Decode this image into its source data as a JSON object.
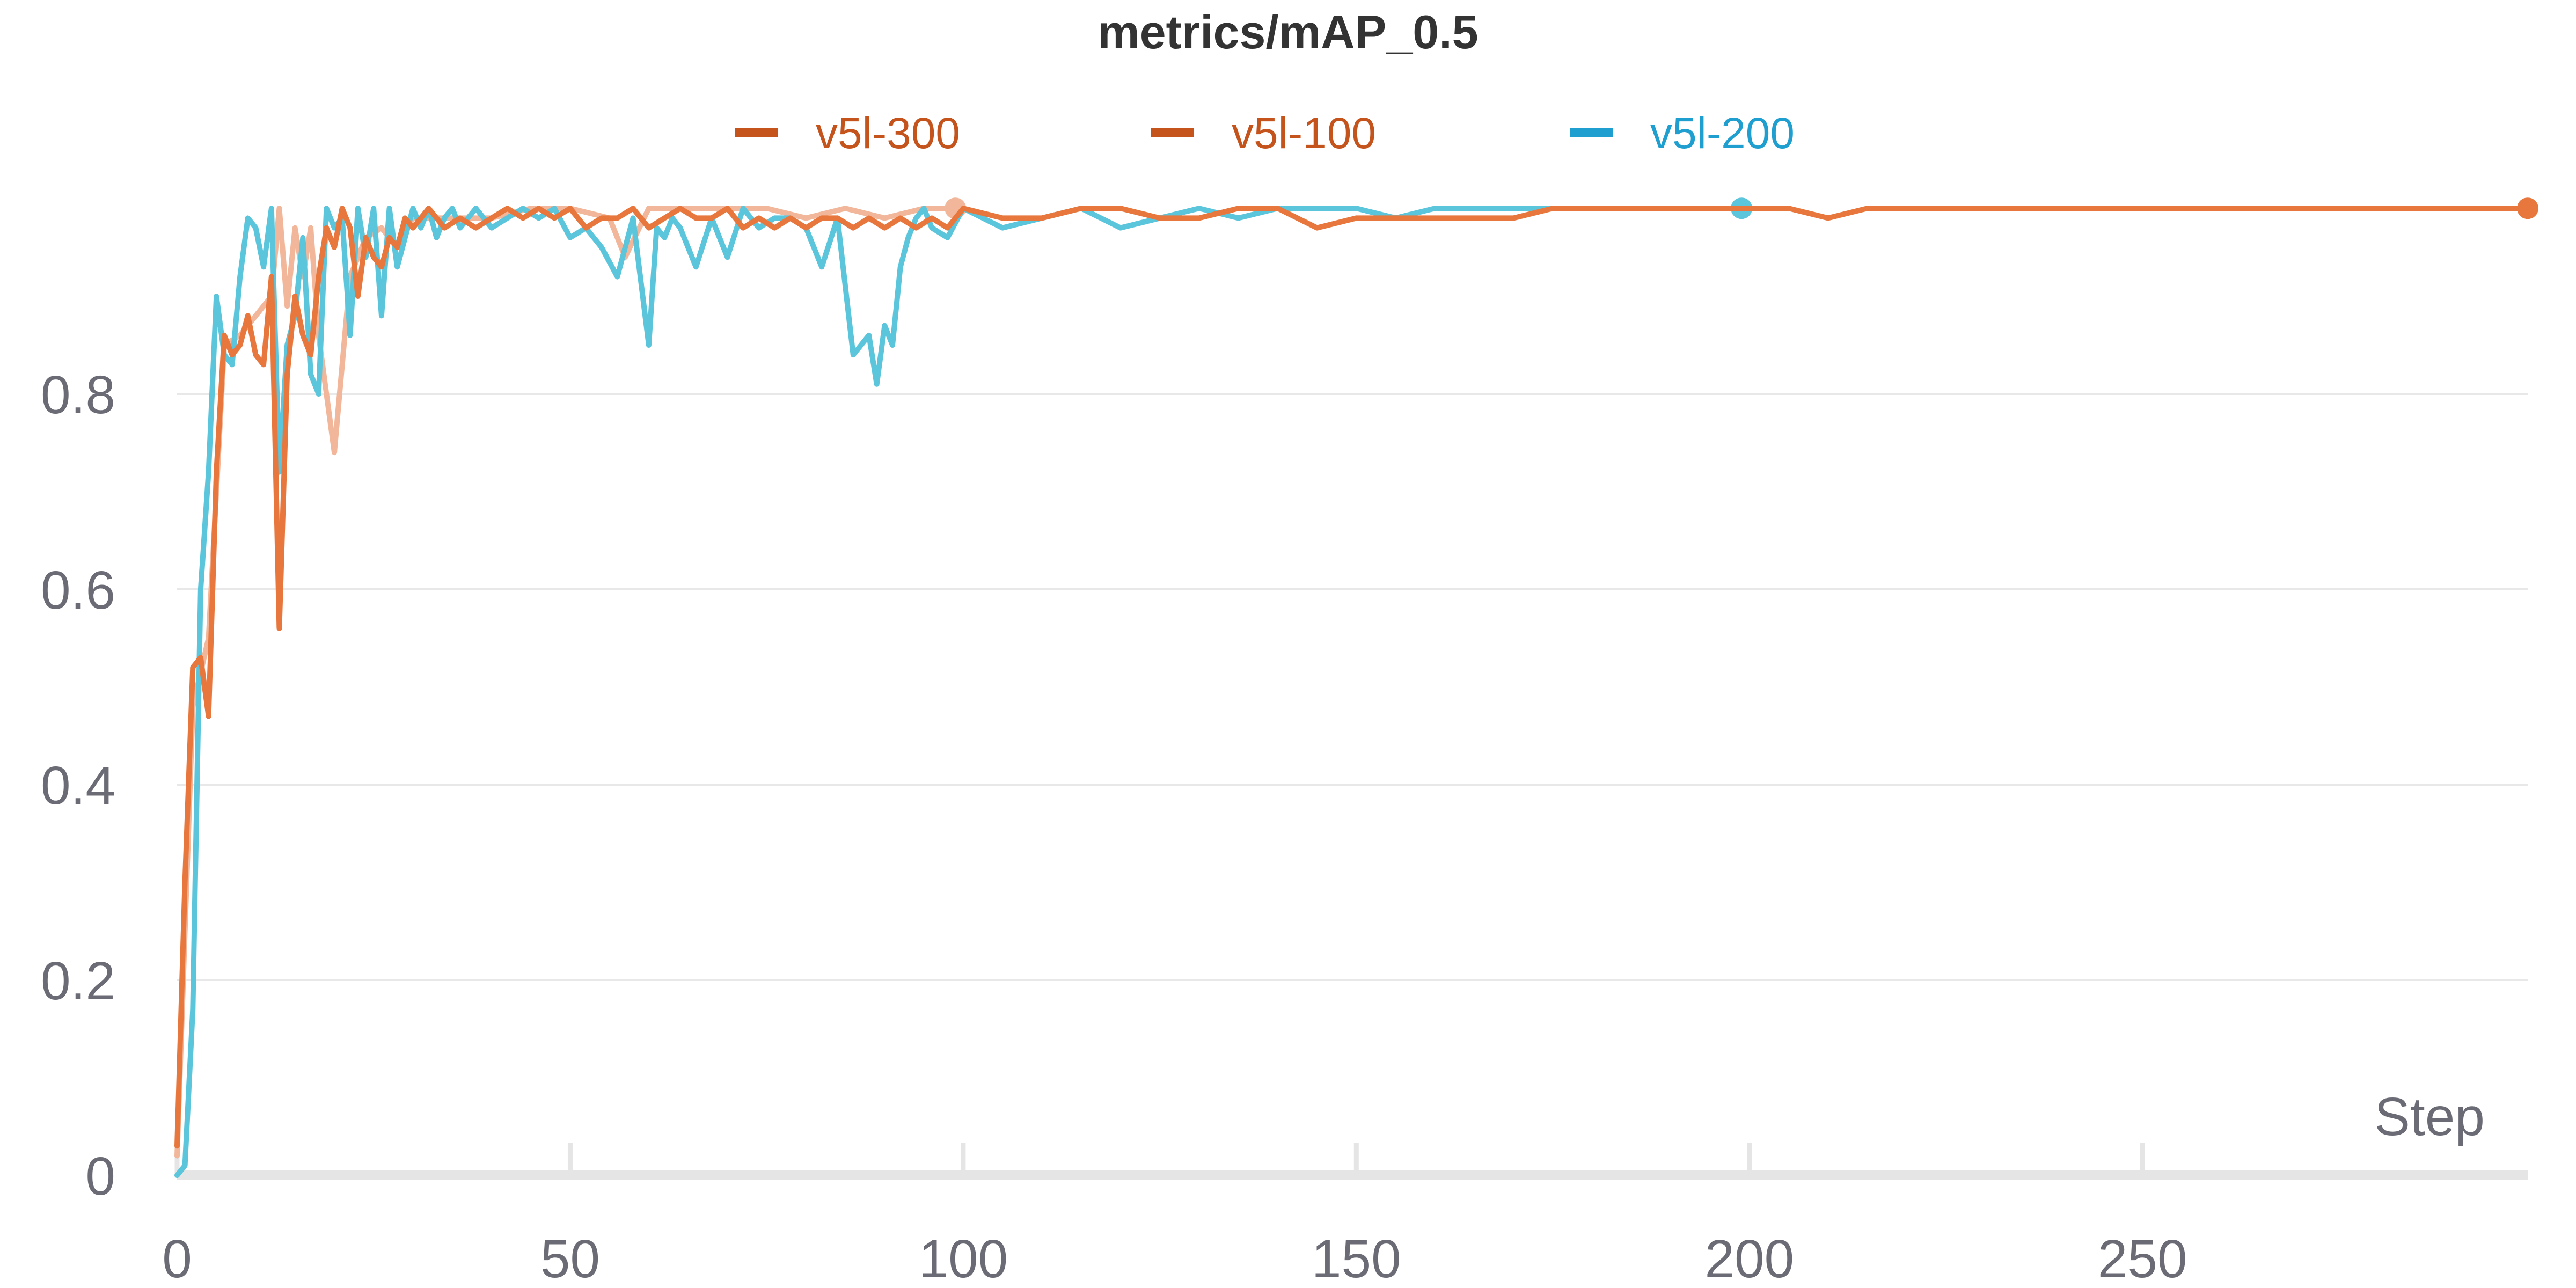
{
  "chart_data": {
    "type": "line",
    "title": "metrics/mAP_0.5",
    "xlabel": "Step",
    "ylabel": "",
    "xlim": [
      0,
      299
    ],
    "ylim": [
      0,
      1.0
    ],
    "x_ticks": [
      "0",
      "50",
      "100",
      "150",
      "200",
      "250"
    ],
    "y_ticks": [
      "0",
      "0.2",
      "0.4",
      "0.6",
      "0.8"
    ],
    "grid": true,
    "legend_position": "top-center",
    "series": [
      {
        "name": "v5l-300",
        "color": "#e8773d",
        "legend_color": "#c4531c",
        "x": [
          0,
          1,
          2,
          3,
          4,
          5,
          6,
          7,
          8,
          9,
          10,
          11,
          12,
          13,
          14,
          15,
          16,
          17,
          18,
          19,
          20,
          21,
          22,
          23,
          24,
          25,
          26,
          27,
          28,
          29,
          30,
          32,
          34,
          36,
          38,
          40,
          42,
          44,
          46,
          48,
          50,
          52,
          54,
          56,
          58,
          60,
          62,
          64,
          66,
          68,
          70,
          72,
          74,
          76,
          78,
          80,
          82,
          84,
          86,
          88,
          90,
          92,
          94,
          96,
          98,
          100,
          105,
          110,
          115,
          120,
          125,
          130,
          135,
          140,
          145,
          150,
          155,
          160,
          165,
          170,
          175,
          180,
          185,
          190,
          195,
          200,
          205,
          210,
          215,
          220,
          225,
          230,
          235,
          240,
          245,
          250,
          255,
          260,
          265,
          270,
          275,
          280,
          285,
          290,
          295,
          299
        ],
        "values": [
          0.03,
          0.3,
          0.52,
          0.53,
          0.47,
          0.72,
          0.86,
          0.84,
          0.85,
          0.88,
          0.84,
          0.83,
          0.92,
          0.56,
          0.82,
          0.9,
          0.86,
          0.84,
          0.92,
          0.97,
          0.95,
          0.99,
          0.97,
          0.9,
          0.96,
          0.94,
          0.93,
          0.96,
          0.95,
          0.98,
          0.97,
          0.99,
          0.97,
          0.98,
          0.97,
          0.98,
          0.99,
          0.98,
          0.99,
          0.98,
          0.99,
          0.97,
          0.98,
          0.98,
          0.99,
          0.97,
          0.98,
          0.99,
          0.98,
          0.98,
          0.99,
          0.97,
          0.98,
          0.97,
          0.98,
          0.97,
          0.98,
          0.98,
          0.97,
          0.98,
          0.97,
          0.98,
          0.97,
          0.98,
          0.97,
          0.99,
          0.98,
          0.98,
          0.99,
          0.99,
          0.98,
          0.98,
          0.99,
          0.99,
          0.97,
          0.98,
          0.98,
          0.98,
          0.98,
          0.98,
          0.99,
          0.99,
          0.99,
          0.99,
          0.99,
          0.99,
          0.99,
          0.98,
          0.99,
          0.99,
          0.99,
          0.99,
          0.99,
          0.99,
          0.99,
          0.99,
          0.99,
          0.99,
          0.99,
          0.99,
          0.99,
          0.99,
          0.99,
          0.99,
          0.99,
          0.99
        ]
      },
      {
        "name": "v5l-100",
        "color": "#f2b79a",
        "legend_color": "#c4531c",
        "x": [
          0,
          2,
          4,
          6,
          8,
          10,
          12,
          13,
          14,
          15,
          16,
          17,
          18,
          19,
          20,
          22,
          24,
          26,
          28,
          30,
          35,
          40,
          45,
          50,
          55,
          57,
          60,
          65,
          70,
          75,
          80,
          85,
          90,
          95,
          99
        ],
        "values": [
          0.02,
          0.48,
          0.55,
          0.85,
          0.86,
          0.88,
          0.9,
          0.99,
          0.89,
          0.97,
          0.92,
          0.97,
          0.86,
          0.8,
          0.74,
          0.92,
          0.96,
          0.97,
          0.95,
          0.98,
          0.98,
          0.98,
          0.99,
          0.99,
          0.98,
          0.94,
          0.99,
          0.99,
          0.99,
          0.99,
          0.98,
          0.99,
          0.98,
          0.99,
          0.99
        ]
      },
      {
        "name": "v5l-200",
        "color": "#5bc5db",
        "legend_color": "#1e9fcf",
        "x": [
          0,
          1,
          2,
          3,
          4,
          5,
          6,
          7,
          8,
          9,
          10,
          11,
          12,
          13,
          14,
          15,
          16,
          17,
          18,
          19,
          20,
          21,
          22,
          23,
          24,
          25,
          26,
          27,
          28,
          29,
          30,
          31,
          32,
          33,
          34,
          35,
          36,
          38,
          40,
          42,
          44,
          46,
          48,
          50,
          52,
          54,
          56,
          58,
          60,
          61,
          62,
          63,
          64,
          66,
          68,
          70,
          72,
          74,
          76,
          78,
          80,
          82,
          84,
          86,
          88,
          89,
          90,
          91,
          92,
          93,
          94,
          95,
          96,
          98,
          100,
          105,
          110,
          115,
          120,
          125,
          130,
          135,
          140,
          145,
          150,
          155,
          160,
          165,
          170,
          175,
          180,
          185,
          190,
          195,
          199
        ],
        "values": [
          0.0,
          0.01,
          0.17,
          0.6,
          0.72,
          0.9,
          0.84,
          0.83,
          0.92,
          0.98,
          0.97,
          0.93,
          0.99,
          0.72,
          0.85,
          0.88,
          0.96,
          0.82,
          0.8,
          0.99,
          0.97,
          0.98,
          0.86,
          0.99,
          0.94,
          0.99,
          0.88,
          0.99,
          0.93,
          0.96,
          0.99,
          0.97,
          0.99,
          0.96,
          0.98,
          0.99,
          0.97,
          0.99,
          0.97,
          0.98,
          0.99,
          0.98,
          0.99,
          0.96,
          0.97,
          0.95,
          0.92,
          0.98,
          0.85,
          0.97,
          0.96,
          0.98,
          0.97,
          0.93,
          0.98,
          0.94,
          0.99,
          0.97,
          0.98,
          0.98,
          0.97,
          0.93,
          0.98,
          0.84,
          0.86,
          0.81,
          0.87,
          0.85,
          0.93,
          0.96,
          0.98,
          0.99,
          0.97,
          0.96,
          0.99,
          0.97,
          0.98,
          0.99,
          0.97,
          0.98,
          0.99,
          0.98,
          0.99,
          0.99,
          0.99,
          0.98,
          0.99,
          0.99,
          0.99,
          0.99,
          0.99,
          0.99,
          0.99,
          0.99,
          0.99
        ]
      }
    ]
  }
}
